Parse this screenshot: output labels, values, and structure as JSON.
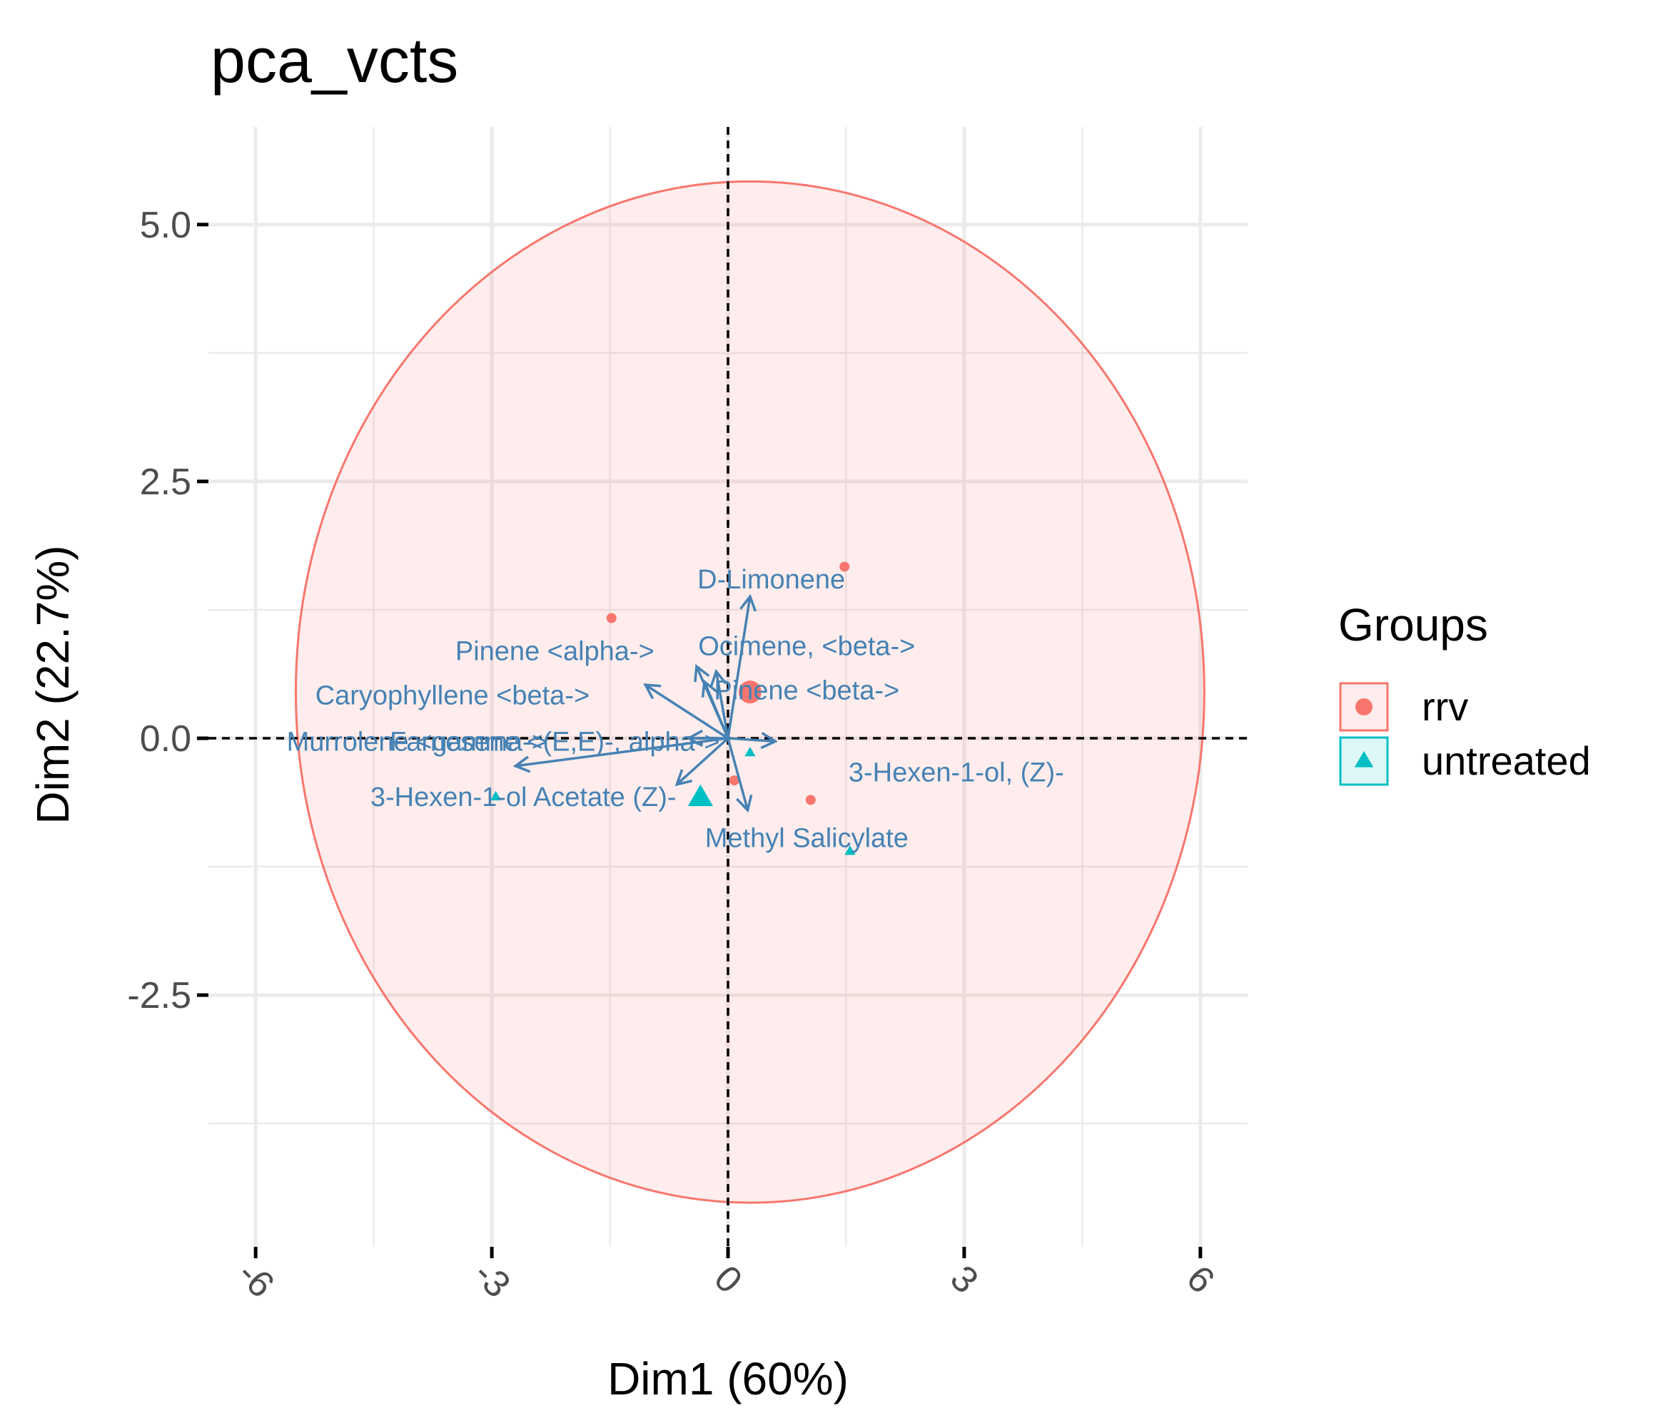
{
  "chart_data": {
    "type": "scatter",
    "title": "pca_vcts",
    "xlabel": "Dim1 (60%)",
    "ylabel": "Dim2 (22.7%)",
    "xlim": [
      -6.6,
      6.6
    ],
    "ylim": [
      -4.95,
      5.95
    ],
    "x_ticks": [
      -6,
      -3,
      0,
      3,
      6
    ],
    "x_tick_labels": [
      "-6",
      "-3",
      "0",
      "3",
      "6"
    ],
    "y_ticks": [
      -2.5,
      0,
      2.5,
      5
    ],
    "y_tick_labels": [
      "-2.5",
      "0.0",
      "2.5",
      "5.0"
    ],
    "grid": true,
    "reference_lines": {
      "x": 0,
      "y": 0,
      "style": "dashed"
    },
    "legend": {
      "title": "Groups",
      "placement": "right",
      "entries": [
        {
          "label": "rrv",
          "shape": "circle",
          "color": "#F8766D"
        },
        {
          "label": "untreated",
          "shape": "triangle",
          "color": "#00BFC4"
        }
      ]
    },
    "colors": {
      "rrv": "#F8766D",
      "untreated": "#00BFC4",
      "variables": "#4682B4"
    },
    "series": [
      {
        "name": "rrv",
        "points": [
          {
            "x": 1.48,
            "y": 1.67
          },
          {
            "x": -1.48,
            "y": 1.17
          },
          {
            "x": 0.28,
            "y": 0.45,
            "mean": true
          },
          {
            "x": 0.08,
            "y": -0.41
          },
          {
            "x": 1.05,
            "y": -0.6
          }
        ],
        "ellipse": {
          "cx": 0.28,
          "cy": 0.45,
          "rx": 5.77,
          "ry": 4.97
        }
      },
      {
        "name": "untreated",
        "points": [
          {
            "x": 0.28,
            "y": -0.14
          },
          {
            "x": -2.95,
            "y": -0.57
          },
          {
            "x": -0.35,
            "y": -0.58,
            "mean": true
          },
          {
            "x": 1.55,
            "y": -1.1
          }
        ]
      }
    ],
    "variables": [
      {
        "name": "D-Limonene",
        "x": 0.28,
        "y": 1.38,
        "label_x": 0.55,
        "label_y": 1.55
      },
      {
        "name": "Ocimene, <beta->",
        "x": -0.4,
        "y": 0.7,
        "label_x": 1.0,
        "label_y": 0.9
      },
      {
        "name": "Pinene <alpha->",
        "x": -0.15,
        "y": 0.65,
        "label_x": -2.2,
        "label_y": 0.85
      },
      {
        "name": "Pinene <beta->",
        "x": -0.3,
        "y": 0.55,
        "label_x": 1.0,
        "label_y": 0.47
      },
      {
        "name": "Caryophyllene <beta->",
        "x": -1.05,
        "y": 0.52,
        "label_x": -3.5,
        "label_y": 0.42
      },
      {
        "name": "Murrolene <gamma->",
        "x": -0.5,
        "y": 0.0,
        "label_x": -3.95,
        "label_y": -0.03
      },
      {
        "name": "Farnesene <(E,E)-, alpha->",
        "x": 0.6,
        "y": -0.03,
        "label_x": -2.2,
        "label_y": -0.03
      },
      {
        "name": "3-Hexen-1-ol Acetate (Z)-",
        "x": -2.7,
        "y": -0.27,
        "label_x": -2.6,
        "label_y": -0.57
      },
      {
        "name": "3-Hexen-1-ol, (Z)-",
        "x": -0.65,
        "y": -0.45,
        "label_x": 2.9,
        "label_y": -0.33
      },
      {
        "name": "Methyl Salicylate",
        "x": 0.25,
        "y": -0.7,
        "label_x": 1.0,
        "label_y": -0.97
      }
    ]
  }
}
